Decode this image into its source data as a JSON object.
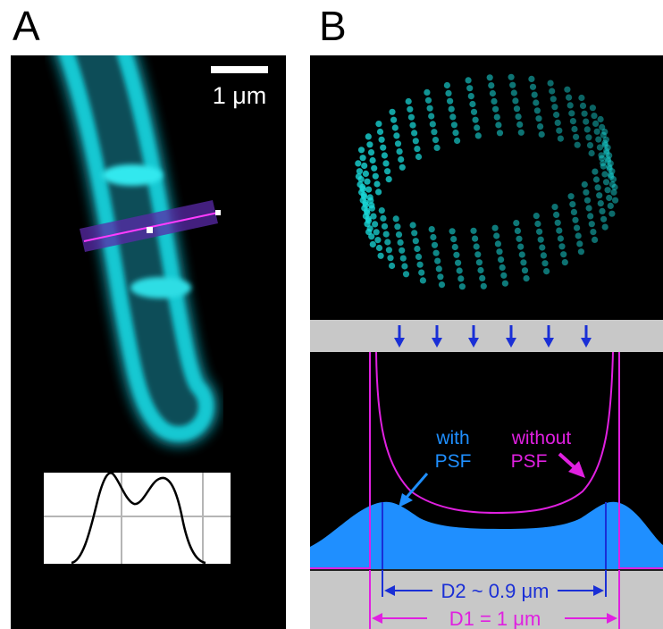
{
  "panel_a": {
    "letter": "A",
    "scale_bar_label": "1 μm"
  },
  "panel_b": {
    "letter": "B",
    "label_with": "with",
    "label_with_psf": "PSF",
    "label_without": "without",
    "label_without_psf": "PSF",
    "d2_label": "D2 ~ 0.9 μm",
    "d1_label": "D1 = 1 μm"
  },
  "colors": {
    "cyan": "#19d9d9",
    "magenta": "#e020e0",
    "blue": "#1f8fff",
    "dark_blue": "#1a2fd6",
    "gray": "#c8c8c8"
  }
}
